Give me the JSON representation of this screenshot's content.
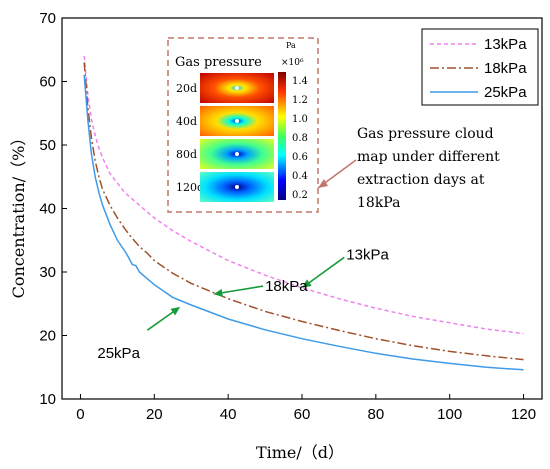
{
  "chart_data": {
    "type": "line",
    "xlabel": "Time/（d）",
    "ylabel": "Concentration/（%）",
    "xlim": [
      -5,
      125
    ],
    "ylim": [
      10,
      70
    ],
    "xticks": [
      0,
      20,
      40,
      60,
      80,
      100,
      120
    ],
    "yticks": [
      10,
      20,
      30,
      40,
      50,
      60,
      70
    ],
    "legend_position": "top-right",
    "series": [
      {
        "name": "13kPa",
        "color": "#ee82ee",
        "dash": "dashed",
        "x": [
          1,
          2,
          3,
          4,
          5,
          6,
          8,
          10,
          12,
          14,
          16,
          18,
          20,
          25,
          30,
          40,
          50,
          60,
          70,
          80,
          90,
          100,
          110,
          120
        ],
        "y": [
          64,
          58,
          54,
          51.5,
          49.5,
          48,
          45.5,
          44,
          42.5,
          41.5,
          40.5,
          39.5,
          38.5,
          36.5,
          34.8,
          31.8,
          29.5,
          27.5,
          25.8,
          24.3,
          23,
          22,
          21,
          20.3
        ]
      },
      {
        "name": "18kPa",
        "color": "#a0522d",
        "dash": "dashdot",
        "x": [
          1,
          2,
          3,
          4,
          5,
          6,
          8,
          10,
          12,
          14,
          16,
          18,
          20,
          25,
          30,
          40,
          50,
          60,
          70,
          80,
          90,
          100,
          110,
          120
        ],
        "y": [
          63,
          56,
          51,
          47.5,
          45,
          43,
          40.5,
          38.5,
          36.8,
          35.3,
          34,
          33,
          31.8,
          29.8,
          28.2,
          25.8,
          23.8,
          22.2,
          20.8,
          19.5,
          18.4,
          17.5,
          16.8,
          16.2
        ]
      },
      {
        "name": "25kPa",
        "color": "#3d9be9",
        "dash": "solid",
        "x": [
          1,
          2,
          3,
          4,
          5,
          6,
          8,
          10,
          12,
          13,
          14,
          15,
          16,
          18,
          20,
          25,
          30,
          40,
          50,
          60,
          70,
          80,
          90,
          100,
          110,
          120
        ],
        "y": [
          61,
          54,
          48.5,
          45,
          42.5,
          40.5,
          37.5,
          35,
          33.3,
          32.3,
          31.2,
          31,
          30,
          29,
          28,
          26,
          24.8,
          22.6,
          20.9,
          19.5,
          18.3,
          17.2,
          16.3,
          15.6,
          15,
          14.6
        ]
      }
    ],
    "annotations": [
      {
        "text": "13kPa",
        "arrow_to": [
          60,
          27.5
        ],
        "label_at": [
          72,
          32
        ]
      },
      {
        "text": "18kPa",
        "arrow_to": [
          36,
          26.5
        ],
        "label_at": [
          50,
          27
        ]
      },
      {
        "text": "25kPa",
        "arrow_to": [
          27,
          24.5
        ],
        "label_at": [
          10,
          18
        ]
      }
    ],
    "inset": {
      "title": "Gas pressure",
      "rows": [
        "20d",
        "40d",
        "80d",
        "120d"
      ],
      "colorbar_unit": "Pa",
      "colorbar_scale": "×10⁶",
      "colorbar_ticks": [
        "1.4",
        "1.2",
        "1.0",
        "0.8",
        "0.6",
        "0.4",
        "0.2"
      ]
    },
    "callout": {
      "lines": [
        "Gas pressure cloud",
        "map under different",
        "extraction days at",
        "18kPa"
      ]
    }
  }
}
